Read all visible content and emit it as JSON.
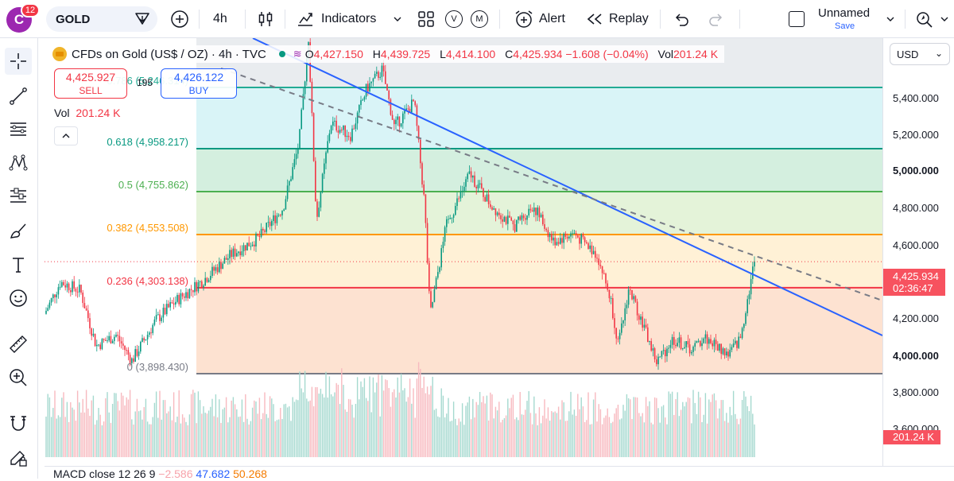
{
  "header": {
    "avatar_letter": "C",
    "notifications": "12",
    "symbol": "GOLD",
    "interval": "4h",
    "indicators_label": "Indicators",
    "v_label": "V",
    "m_label": "M",
    "alert_label": "Alert",
    "replay_label": "Replay",
    "layout_name": "Unnamed",
    "save_label": "Save"
  },
  "left_tools": [
    "crosshair-icon",
    "trend-line-icon",
    "fib-tool-icon",
    "pattern-icon",
    "projection-icon",
    "brush-icon",
    "text-icon",
    "emoji-icon",
    "ruler-icon",
    "zoom-in-icon",
    "magnet-icon",
    "lock-drawings-icon"
  ],
  "legend": {
    "title": "CFDs on Gold (US$ / OZ) · 4h · TVC",
    "o_key": "O",
    "o_val": "4,427.150",
    "h_key": "H",
    "h_val": "4,439.725",
    "l_key": "L",
    "l_val": "4,414.100",
    "c_key": "C",
    "c_val": "4,425.934 −1.608 (−0.04%)",
    "vol_key": "Vol",
    "vol_val": "201.24 K"
  },
  "trade": {
    "sell_price": "4,425.927",
    "sell_label": "SELL",
    "spread": "195",
    "buy_price": "4,426.122",
    "buy_label": "BUY"
  },
  "volume_legend": {
    "label": "Vol",
    "value": "201.24 K"
  },
  "fib_levels": [
    {
      "label": "0.786 (5,246.314)",
      "price": 5246.314,
      "color": "#22ab94"
    },
    {
      "label": "0.618 (4,958.217)",
      "price": 4958.217,
      "color": "#089981"
    },
    {
      "label": "0.5 (4,755.862)",
      "price": 4755.862,
      "color": "#4caf50"
    },
    {
      "label": "0.382 (4,553.508)",
      "price": 4553.508,
      "color": "#ff9800"
    },
    {
      "label": "0.236 (4,303.138)",
      "price": 4303.138,
      "color": "#f23645"
    },
    {
      "label": "0 (3,898.430)",
      "price": 3898.43,
      "color": "#787b86"
    }
  ],
  "price_axis": {
    "currency": "USD",
    "ticks": [
      "5,400.000",
      "5,200.000",
      "5,000.000",
      "4,800.000",
      "4,600.000",
      "4,200.000",
      "4,000.000",
      "3,800.000",
      "3,600.000"
    ],
    "last_price": "4,425.934",
    "countdown": "02:36:47",
    "volume_badge": "201.24 K"
  },
  "macd": {
    "label": "MACD close 12 26 9",
    "v1": "−2.586",
    "v2": "47.682",
    "v3": "50.268"
  }
}
